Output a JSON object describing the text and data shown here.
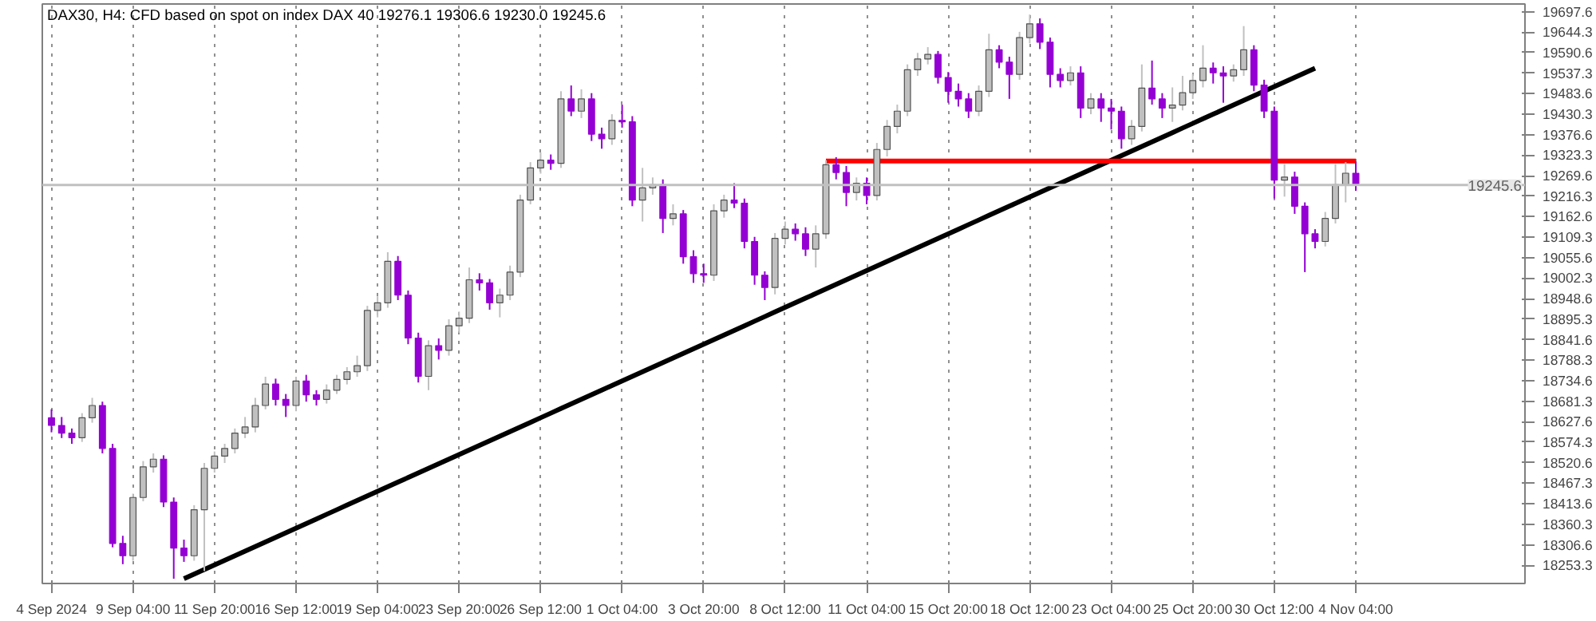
{
  "chart_data": {
    "type": "candlestick",
    "title": "DAX30, H4:  CFD based on spot on index DAX 40  19276.1 19306.6 19230.0 19245.6",
    "categories": [
      "4 Sep 2024",
      null,
      null,
      null,
      null,
      null,
      null,
      null,
      "9 Sep 04:00",
      null,
      null,
      null,
      null,
      null,
      null,
      null,
      "11 Sep 20:00",
      null,
      null,
      null,
      null,
      null,
      null,
      null,
      "16 Sep 12:00",
      null,
      null,
      null,
      null,
      null,
      null,
      null,
      "19 Sep 04:00",
      null,
      null,
      null,
      null,
      null,
      null,
      null,
      "23 Sep 20:00",
      null,
      null,
      null,
      null,
      null,
      null,
      null,
      "26 Sep 12:00",
      null,
      null,
      null,
      null,
      null,
      null,
      null,
      "1 Oct 04:00",
      null,
      null,
      null,
      null,
      null,
      null,
      null,
      "3 Oct 20:00",
      null,
      null,
      null,
      null,
      null,
      null,
      null,
      "8 Oct 12:00",
      null,
      null,
      null,
      null,
      null,
      null,
      null,
      "11 Oct 04:00",
      null,
      null,
      null,
      null,
      null,
      null,
      null,
      "15 Oct 20:00",
      null,
      null,
      null,
      null,
      null,
      null,
      null,
      "18 Oct 12:00",
      null,
      null,
      null,
      null,
      null,
      null,
      null,
      "23 Oct 04:00",
      null,
      null,
      null,
      null,
      null,
      null,
      null,
      "25 Oct 20:00",
      null,
      null,
      null,
      null,
      null,
      null,
      null,
      "30 Oct 12:00",
      null,
      null,
      null,
      null,
      null,
      null,
      null,
      "4 Nov 04:00"
    ],
    "ohlc": [
      [
        18638,
        18660,
        18600,
        18618
      ],
      [
        18618,
        18640,
        18585,
        18598
      ],
      [
        18598,
        18610,
        18570,
        18586
      ],
      [
        18586,
        18650,
        18575,
        18638
      ],
      [
        18638,
        18690,
        18625,
        18670
      ],
      [
        18670,
        18680,
        18545,
        18558
      ],
      [
        18558,
        18570,
        18300,
        18310
      ],
      [
        18310,
        18330,
        18256,
        18278
      ],
      [
        18278,
        18440,
        18265,
        18430
      ],
      [
        18430,
        18525,
        18420,
        18510
      ],
      [
        18510,
        18545,
        18495,
        18530
      ],
      [
        18530,
        18540,
        18405,
        18418
      ],
      [
        18418,
        18430,
        18218,
        18298
      ],
      [
        18298,
        18320,
        18262,
        18278
      ],
      [
        18278,
        18410,
        18265,
        18398
      ],
      [
        18398,
        18520,
        18238,
        18506
      ],
      [
        18506,
        18550,
        18495,
        18538
      ],
      [
        18538,
        18570,
        18520,
        18558
      ],
      [
        18558,
        18610,
        18545,
        18598
      ],
      [
        18598,
        18640,
        18585,
        18614
      ],
      [
        18614,
        18690,
        18600,
        18670
      ],
      [
        18670,
        18745,
        18660,
        18726
      ],
      [
        18726,
        18740,
        18670,
        18686
      ],
      [
        18686,
        18700,
        18640,
        18670
      ],
      [
        18670,
        18745,
        18655,
        18734
      ],
      [
        18734,
        18750,
        18680,
        18698
      ],
      [
        18698,
        18710,
        18670,
        18686
      ],
      [
        18686,
        18725,
        18675,
        18710
      ],
      [
        18710,
        18750,
        18700,
        18738
      ],
      [
        18738,
        18770,
        18725,
        18758
      ],
      [
        18758,
        18800,
        18745,
        18774
      ],
      [
        18774,
        18930,
        18760,
        18918
      ],
      [
        18918,
        18955,
        18900,
        18938
      ],
      [
        18938,
        19070,
        18925,
        19046
      ],
      [
        19046,
        19060,
        18945,
        18958
      ],
      [
        18958,
        18970,
        18830,
        18846
      ],
      [
        18846,
        18860,
        18730,
        18746
      ],
      [
        18746,
        18840,
        18710,
        18826
      ],
      [
        18826,
        18845,
        18790,
        18814
      ],
      [
        18814,
        18895,
        18800,
        18878
      ],
      [
        18878,
        18915,
        18860,
        18898
      ],
      [
        18898,
        19030,
        18885,
        18998
      ],
      [
        18998,
        19015,
        18970,
        18990
      ],
      [
        18990,
        19000,
        18920,
        18938
      ],
      [
        18938,
        18975,
        18900,
        18958
      ],
      [
        18958,
        19035,
        18945,
        19018
      ],
      [
        19018,
        19220,
        19005,
        19206
      ],
      [
        19206,
        19305,
        19195,
        19290
      ],
      [
        19290,
        19330,
        19275,
        19310
      ],
      [
        19310,
        19325,
        19285,
        19302
      ],
      [
        19302,
        19490,
        19290,
        19470
      ],
      [
        19470,
        19505,
        19425,
        19438
      ],
      [
        19438,
        19495,
        19420,
        19470
      ],
      [
        19470,
        19485,
        19360,
        19378
      ],
      [
        19378,
        19395,
        19340,
        19366
      ],
      [
        19366,
        19430,
        19350,
        19414
      ],
      [
        19414,
        19455,
        19395,
        19410
      ],
      [
        19410,
        19425,
        19190,
        19206
      ],
      [
        19206,
        19290,
        19150,
        19238
      ],
      [
        19238,
        19265,
        19220,
        19246
      ],
      [
        19246,
        19260,
        19120,
        19158
      ],
      [
        19158,
        19195,
        19140,
        19170
      ],
      [
        19170,
        19180,
        19040,
        19058
      ],
      [
        19058,
        19075,
        18990,
        19014
      ],
      [
        19014,
        19040,
        18990,
        19010
      ],
      [
        19010,
        19195,
        18995,
        19178
      ],
      [
        19178,
        19220,
        19160,
        19206
      ],
      [
        19206,
        19250,
        19185,
        19198
      ],
      [
        19198,
        19210,
        19080,
        19098
      ],
      [
        19098,
        19110,
        18985,
        19010
      ],
      [
        19010,
        19020,
        18945,
        18978
      ],
      [
        18978,
        19120,
        18960,
        19106
      ],
      [
        19106,
        19150,
        19090,
        19130
      ],
      [
        19130,
        19145,
        19100,
        19118
      ],
      [
        19118,
        19135,
        19060,
        19078
      ],
      [
        19078,
        19140,
        19030,
        19118
      ],
      [
        19118,
        19310,
        19105,
        19298
      ],
      [
        19298,
        19318,
        19260,
        19278
      ],
      [
        19278,
        19295,
        19190,
        19226
      ],
      [
        19226,
        19265,
        19205,
        19250
      ],
      [
        19250,
        19265,
        19195,
        19218
      ],
      [
        19218,
        19355,
        19205,
        19338
      ],
      [
        19338,
        19415,
        19320,
        19398
      ],
      [
        19398,
        19455,
        19380,
        19438
      ],
      [
        19438,
        19560,
        19425,
        19546
      ],
      [
        19546,
        19590,
        19530,
        19574
      ],
      [
        19574,
        19605,
        19560,
        19586
      ],
      [
        19586,
        19595,
        19510,
        19526
      ],
      [
        19526,
        19540,
        19460,
        19490
      ],
      [
        19490,
        19510,
        19450,
        19470
      ],
      [
        19470,
        19485,
        19420,
        19438
      ],
      [
        19438,
        19505,
        19425,
        19490
      ],
      [
        19490,
        19640,
        19475,
        19598
      ],
      [
        19598,
        19610,
        19550,
        19566
      ],
      [
        19566,
        19580,
        19470,
        19534
      ],
      [
        19534,
        19645,
        19520,
        19630
      ],
      [
        19630,
        19690,
        19615,
        19666
      ],
      [
        19666,
        19680,
        19600,
        19618
      ],
      [
        19618,
        19630,
        19500,
        19534
      ],
      [
        19534,
        19550,
        19500,
        19518
      ],
      [
        19518,
        19555,
        19505,
        19538
      ],
      [
        19538,
        19555,
        19420,
        19446
      ],
      [
        19446,
        19485,
        19430,
        19470
      ],
      [
        19470,
        19485,
        19410,
        19446
      ],
      [
        19446,
        19470,
        19390,
        19438
      ],
      [
        19438,
        19450,
        19340,
        19366
      ],
      [
        19366,
        19415,
        19350,
        19398
      ],
      [
        19398,
        19560,
        19385,
        19498
      ],
      [
        19498,
        19570,
        19455,
        19470
      ],
      [
        19470,
        19485,
        19420,
        19446
      ],
      [
        19446,
        19500,
        19410,
        19454
      ],
      [
        19454,
        19530,
        19440,
        19486
      ],
      [
        19486,
        19535,
        19470,
        19518
      ],
      [
        19518,
        19610,
        19500,
        19550
      ],
      [
        19550,
        19565,
        19510,
        19538
      ],
      [
        19538,
        19555,
        19460,
        19530
      ],
      [
        19530,
        19560,
        19515,
        19546
      ],
      [
        19546,
        19660,
        19530,
        19598
      ],
      [
        19598,
        19610,
        19490,
        19506
      ],
      [
        19506,
        19520,
        19420,
        19438
      ],
      [
        19438,
        19450,
        19210,
        19258
      ],
      [
        19258,
        19300,
        19215,
        19266
      ],
      [
        19266,
        19280,
        19170,
        19190
      ],
      [
        19190,
        19200,
        19018,
        19118
      ],
      [
        19118,
        19130,
        19080,
        19098
      ],
      [
        19098,
        19175,
        19085,
        19158
      ],
      [
        19158,
        19300,
        19145,
        19246
      ],
      [
        19246,
        19305,
        19200,
        19276.1
      ],
      [
        19276.1,
        19306.6,
        19230.0,
        19245.6
      ]
    ],
    "colors": [
      "#9400d3",
      "#9400d3",
      "#9400d3",
      "#c0c0c0",
      "#c0c0c0",
      "#9400d3",
      "#9400d3",
      "#9400d3",
      "#c0c0c0",
      "#c0c0c0",
      "#c0c0c0",
      "#9400d3",
      "#9400d3",
      "#9400d3",
      "#c0c0c0",
      "#c0c0c0",
      "#c0c0c0",
      "#c0c0c0",
      "#c0c0c0",
      "#c0c0c0",
      "#c0c0c0",
      "#c0c0c0",
      "#9400d3",
      "#9400d3",
      "#c0c0c0",
      "#9400d3",
      "#9400d3",
      "#c0c0c0",
      "#c0c0c0",
      "#c0c0c0",
      "#c0c0c0",
      "#c0c0c0",
      "#c0c0c0",
      "#c0c0c0",
      "#9400d3",
      "#9400d3",
      "#9400d3",
      "#c0c0c0",
      "#9400d3",
      "#c0c0c0",
      "#c0c0c0",
      "#c0c0c0",
      "#9400d3",
      "#9400d3",
      "#c0c0c0",
      "#c0c0c0",
      "#c0c0c0",
      "#c0c0c0",
      "#c0c0c0",
      "#9400d3",
      "#c0c0c0",
      "#9400d3",
      "#c0c0c0",
      "#9400d3",
      "#9400d3",
      "#c0c0c0",
      "#9400d3",
      "#9400d3",
      "#c0c0c0",
      "#c0c0c0",
      "#9400d3",
      "#c0c0c0",
      "#9400d3",
      "#9400d3",
      "#9400d3",
      "#c0c0c0",
      "#c0c0c0",
      "#9400d3",
      "#9400d3",
      "#9400d3",
      "#9400d3",
      "#c0c0c0",
      "#c0c0c0",
      "#9400d3",
      "#9400d3",
      "#c0c0c0",
      "#c0c0c0",
      "#9400d3",
      "#9400d3",
      "#c0c0c0",
      "#9400d3",
      "#c0c0c0",
      "#c0c0c0",
      "#c0c0c0",
      "#c0c0c0",
      "#c0c0c0",
      "#c0c0c0",
      "#9400d3",
      "#9400d3",
      "#9400d3",
      "#9400d3",
      "#c0c0c0",
      "#c0c0c0",
      "#9400d3",
      "#9400d3",
      "#c0c0c0",
      "#c0c0c0",
      "#9400d3",
      "#9400d3",
      "#9400d3",
      "#c0c0c0",
      "#9400d3",
      "#c0c0c0",
      "#9400d3",
      "#9400d3",
      "#9400d3",
      "#c0c0c0",
      "#c0c0c0",
      "#9400d3",
      "#9400d3",
      "#c0c0c0",
      "#c0c0c0",
      "#c0c0c0",
      "#c0c0c0",
      "#9400d3",
      "#9400d3",
      "#c0c0c0",
      "#c0c0c0",
      "#9400d3",
      "#9400d3",
      "#9400d3",
      "#c0c0c0",
      "#9400d3",
      "#9400d3",
      "#9400d3",
      "#c0c0c0",
      "#c0c0c0",
      "#c0c0c0",
      "#9400d3"
    ],
    "series": [
      {
        "type": "line",
        "color": "#000000",
        "values": [
          null,
          null,
          null,
          null,
          null,
          null,
          null,
          null,
          null,
          null,
          null,
          null,
          null,
          18218,
          18230,
          18242,
          18254,
          18266,
          18278,
          18290,
          18302,
          18314,
          18326,
          18338,
          18350,
          18362,
          18374,
          18386,
          18398,
          18410,
          18422,
          18434,
          18446,
          18458,
          18470,
          18482,
          18494,
          18506,
          18518,
          18530,
          18542,
          18554,
          18566,
          18578,
          18590,
          18602,
          18614,
          18626,
          18638,
          18650,
          18662,
          18674,
          18686,
          18698,
          18710,
          18722,
          18734,
          18746,
          18758,
          18770,
          18782,
          18794,
          18806,
          18818,
          18830,
          18842,
          18854,
          18866,
          18878,
          18890,
          18902,
          18914,
          18926,
          18938,
          18950,
          18962,
          18974,
          18986,
          18998,
          19010,
          19022,
          19034,
          19046,
          19058,
          19070,
          19082,
          19094,
          19106,
          19118,
          19130,
          19142,
          19154,
          19166,
          19178,
          19190,
          19202,
          19214,
          19226,
          19238,
          19250,
          19262,
          19274,
          19286,
          19298,
          19310,
          19322,
          19334,
          19346,
          19358,
          19370,
          19382,
          19394,
          19406,
          19418,
          19430,
          19442,
          19454,
          19466,
          19478,
          19490,
          19502,
          19514,
          19526,
          19538,
          19550,
          null,
          null,
          null,
          null
        ]
      },
      {
        "type": "line",
        "color": "#ff0000",
        "values": [
          null,
          null,
          null,
          null,
          null,
          null,
          null,
          null,
          null,
          null,
          null,
          null,
          null,
          null,
          null,
          null,
          null,
          null,
          null,
          null,
          null,
          null,
          null,
          null,
          null,
          null,
          null,
          null,
          null,
          null,
          null,
          null,
          null,
          null,
          null,
          null,
          null,
          null,
          null,
          null,
          null,
          null,
          null,
          null,
          null,
          null,
          null,
          null,
          null,
          null,
          null,
          null,
          null,
          null,
          null,
          null,
          null,
          null,
          null,
          null,
          null,
          null,
          null,
          null,
          null,
          null,
          null,
          null,
          null,
          null,
          null,
          null,
          null,
          null,
          null,
          null,
          19308,
          19308,
          19308,
          19308,
          19308,
          19308,
          19308,
          19308,
          19308,
          19308,
          19308,
          19308,
          19308,
          19308,
          19308,
          19308,
          19308,
          19308,
          19308,
          19308,
          19308,
          19308,
          19308,
          19308,
          19308,
          19308,
          19308,
          19308,
          19308,
          19308,
          19308,
          19308,
          19308,
          19308,
          19308,
          19308,
          19308,
          19308,
          19308,
          19308,
          19308,
          19308,
          19308,
          19308,
          19308,
          19308,
          19308,
          19308,
          19308,
          19308,
          19308,
          19308,
          19308
        ]
      }
    ],
    "ref_lines": [
      {
        "axis": "y",
        "value": 19245.6,
        "label": "19245.6",
        "color": "#c0c0c0"
      }
    ],
    "ylim": [
      18205.6,
      19717.6
    ],
    "yticks": [
      19697.6,
      19644.3,
      19590.6,
      19537.3,
      19483.6,
      19430.3,
      19376.6,
      19323.3,
      19269.6,
      19216.3,
      19162.6,
      19109.3,
      19055.6,
      19002.3,
      18948.6,
      18895.3,
      18841.6,
      18788.3,
      18734.6,
      18681.3,
      18627.6,
      18574.3,
      18520.6,
      18467.3,
      18413.6,
      18360.3,
      18306.6,
      18253.3
    ],
    "grid": "x"
  }
}
